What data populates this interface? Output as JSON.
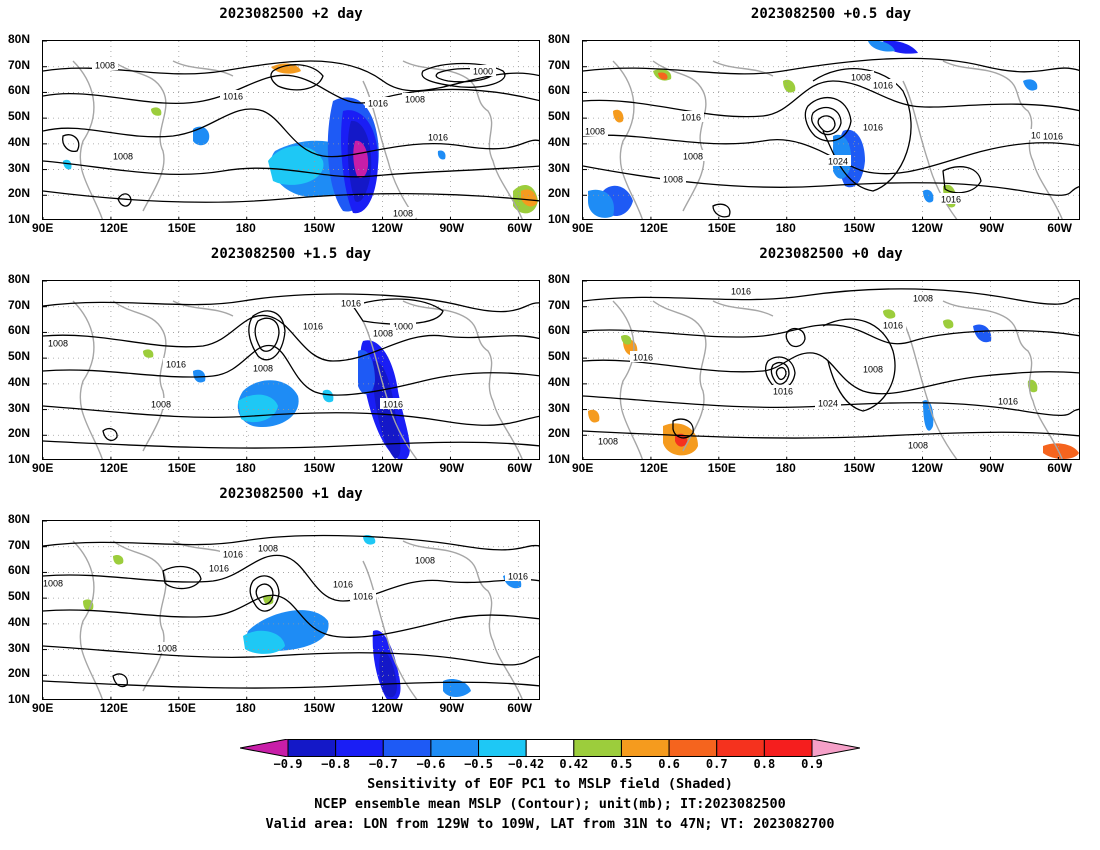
{
  "panels": [
    {
      "title": "2023082500 +2 day",
      "labels": [
        "1008",
        "1016",
        "1016",
        "1008",
        "1000",
        "1016",
        "1008",
        "1008"
      ]
    },
    {
      "title": "2023082500 +0.5 day",
      "labels": [
        "1008",
        "1008",
        "1016",
        "1016",
        "1016",
        "1016",
        "1008",
        "1024",
        "1016",
        "1016",
        "1008"
      ]
    },
    {
      "title": "2023082500 +1.5 day",
      "labels": [
        "1016",
        "1016",
        "1008",
        "1000",
        "1008",
        "1016",
        "1008",
        "1008",
        "1016"
      ]
    },
    {
      "title": "2023082500 +0 day",
      "labels": [
        "1016",
        "1008",
        "1016",
        "1016",
        "1008",
        "1016",
        "1024",
        "1016",
        "1008",
        "1008"
      ]
    },
    {
      "title": "2023082500 +1 day",
      "labels": [
        "1016",
        "1008",
        "1016",
        "1008",
        "1016",
        "1016",
        "1008",
        "1008",
        "1016"
      ]
    }
  ],
  "axes": {
    "lat_labels": [
      "80N",
      "70N",
      "60N",
      "50N",
      "40N",
      "30N",
      "20N",
      "10N"
    ],
    "lon_labels": [
      "90E",
      "120E",
      "150E",
      "180",
      "150W",
      "120W",
      "90W",
      "60W"
    ]
  },
  "colorbar": {
    "labels": [
      "−0.9",
      "−0.8",
      "−0.7",
      "−0.6",
      "−0.5",
      "−0.42",
      "0.42",
      "0.5",
      "0.6",
      "0.7",
      "0.8",
      "0.9"
    ],
    "colors": [
      "#c81ea8",
      "#1418c8",
      "#1a1ef5",
      "#1e5af5",
      "#1e8cf5",
      "#1ec8f5",
      "#ffffff",
      "#9ccd3c",
      "#f59b1e",
      "#f5641e",
      "#f5321e",
      "#f51e1e",
      "#f5a0c8"
    ]
  },
  "caption": {
    "line1": "Sensitivity of EOF PC1 to MSLP field (Shaded)",
    "line2": "NCEP ensemble mean MSLP (Contour); unit(mb); IT:2023082500",
    "line3": "Valid area: LON from 129W to 109W, LAT from 31N to 47N; VT: 2023082700"
  }
}
